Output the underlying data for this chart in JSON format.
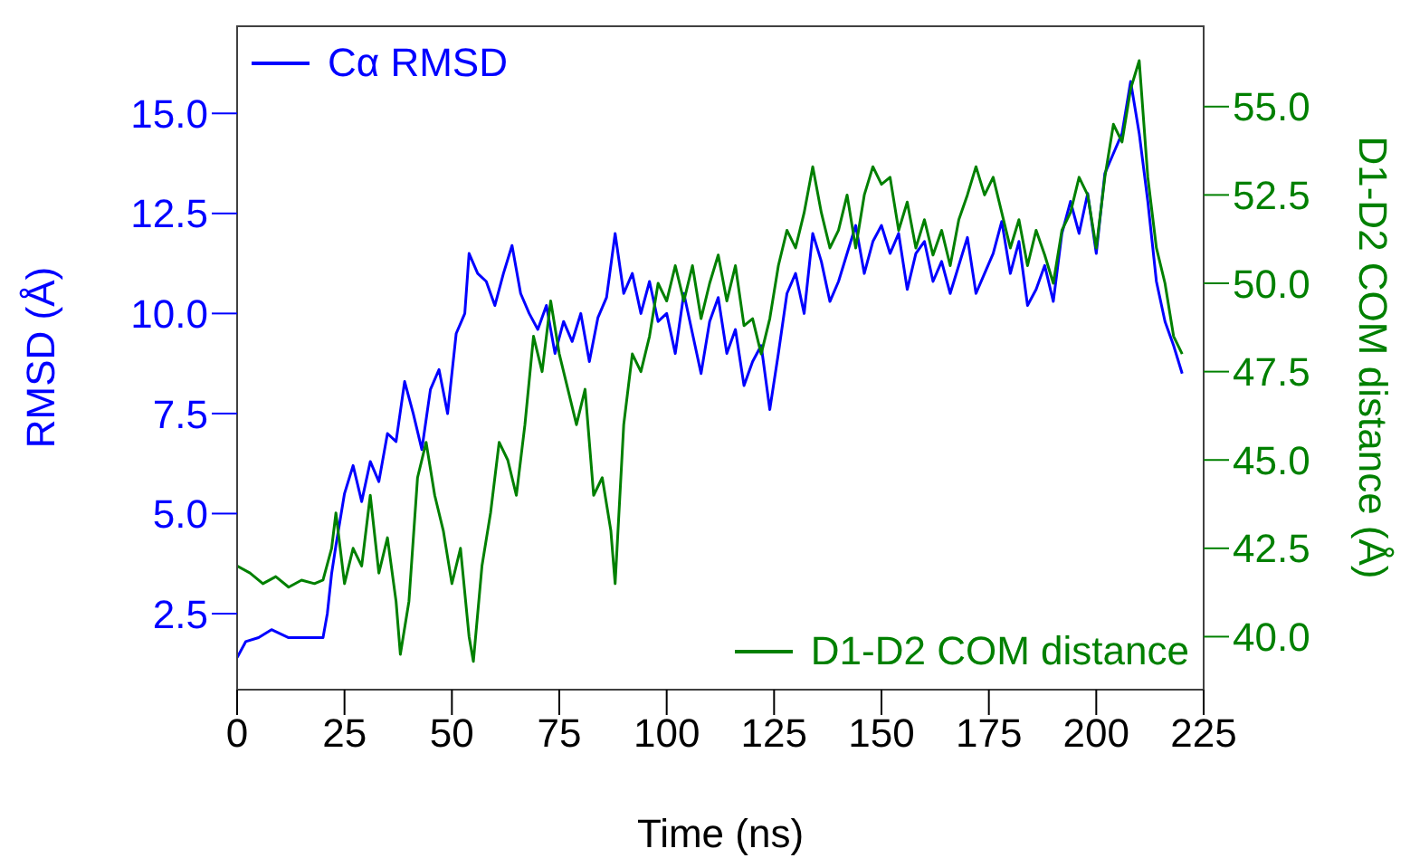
{
  "chart_data": {
    "type": "line",
    "xlabel": "Time (ns)",
    "ylabel": "RMSD (Å)",
    "y2label": "D1-D2 COM distance (Å)",
    "xlim": [
      0,
      225
    ],
    "xticks": [
      0,
      25,
      50,
      75,
      100,
      125,
      150,
      175,
      200,
      225
    ],
    "ylim": [
      0.6,
      17.2
    ],
    "yticks": [
      {
        "value": 2.5,
        "label": "2.5"
      },
      {
        "value": 5,
        "label": "5.0"
      },
      {
        "value": 7.5,
        "label": "7.5"
      },
      {
        "value": 10,
        "label": "10.0"
      },
      {
        "value": 12.5,
        "label": "12.5"
      },
      {
        "value": 15,
        "label": "15.0"
      }
    ],
    "y2lim": [
      38.5,
      57.3
    ],
    "y2ticks": [
      {
        "value": 40,
        "label": "40.0"
      },
      {
        "value": 42.5,
        "label": "42.5"
      },
      {
        "value": 45,
        "label": "45.0"
      },
      {
        "value": 47.5,
        "label": "47.5"
      },
      {
        "value": 50,
        "label": "50.0"
      },
      {
        "value": 52.5,
        "label": "52.5"
      },
      {
        "value": 55,
        "label": "55.0"
      }
    ],
    "grid": false,
    "legend": "top left",
    "marker": "none",
    "line_style": "solid",
    "series": [
      {
        "name": "Cα RMSD",
        "color": "#0000ff",
        "x": [
          0,
          2,
          5,
          8,
          12,
          18,
          20,
          21,
          22,
          23,
          25,
          27,
          29,
          31,
          33,
          35,
          37,
          39,
          41,
          43,
          45,
          47,
          49,
          51,
          53,
          54,
          56,
          58,
          60,
          62,
          64,
          66,
          68,
          70,
          72,
          74,
          76,
          78,
          80,
          82,
          84,
          86,
          88,
          90,
          92,
          94,
          96,
          98,
          100,
          102,
          104,
          106,
          108,
          110,
          112,
          114,
          116,
          118,
          120,
          122,
          124,
          126,
          128,
          130,
          132,
          134,
          136,
          138,
          140,
          142,
          144,
          146,
          148,
          150,
          152,
          154,
          156,
          158,
          160,
          162,
          164,
          166,
          168,
          170,
          172,
          174,
          176,
          178,
          180,
          182,
          184,
          186,
          188,
          190,
          192,
          194,
          196,
          198,
          200,
          202,
          204,
          206,
          208,
          210,
          212,
          214,
          216,
          218,
          220
        ],
        "values": [
          1.4,
          1.8,
          1.9,
          2.1,
          1.9,
          1.9,
          1.9,
          2.5,
          3.5,
          4.2,
          5.5,
          6.2,
          5.3,
          6.3,
          5.8,
          7.0,
          6.8,
          8.3,
          7.5,
          6.6,
          8.1,
          8.6,
          7.5,
          9.5,
          10.0,
          11.5,
          11.0,
          10.8,
          10.2,
          11.0,
          11.7,
          10.5,
          10.0,
          9.6,
          10.2,
          9.0,
          9.8,
          9.3,
          10.0,
          8.8,
          9.9,
          10.4,
          12.0,
          10.5,
          11.0,
          10.0,
          10.8,
          9.8,
          10.0,
          9.0,
          10.5,
          9.5,
          8.5,
          9.8,
          10.4,
          9.0,
          9.6,
          8.2,
          8.8,
          9.2,
          7.6,
          9.0,
          10.5,
          11.0,
          10.0,
          12.0,
          11.3,
          10.3,
          10.8,
          11.5,
          12.2,
          11.0,
          11.8,
          12.2,
          11.5,
          12.0,
          10.6,
          11.5,
          11.8,
          10.8,
          11.3,
          10.5,
          11.2,
          11.9,
          10.5,
          11.0,
          11.5,
          12.3,
          11.0,
          11.8,
          10.2,
          10.6,
          11.2,
          10.3,
          12.0,
          12.8,
          12.0,
          13.0,
          11.5,
          13.5,
          14.0,
          14.5,
          15.8,
          14.5,
          12.8,
          10.8,
          9.8,
          9.2,
          8.5
        ]
      },
      {
        "name": "D1-D2 COM distance",
        "color": "#008000",
        "axis": "y2",
        "x": [
          0,
          3,
          6,
          9,
          12,
          15,
          18,
          20,
          22,
          23,
          25,
          27,
          29,
          31,
          33,
          35,
          37,
          38,
          40,
          42,
          44,
          46,
          48,
          50,
          52,
          54,
          55,
          57,
          59,
          61,
          63,
          65,
          67,
          69,
          71,
          73,
          75,
          77,
          79,
          81,
          83,
          85,
          87,
          88,
          90,
          92,
          94,
          96,
          98,
          100,
          102,
          104,
          106,
          108,
          110,
          112,
          114,
          116,
          118,
          120,
          122,
          124,
          126,
          128,
          130,
          132,
          134,
          136,
          138,
          140,
          142,
          144,
          146,
          148,
          150,
          152,
          154,
          156,
          158,
          160,
          162,
          164,
          166,
          168,
          170,
          172,
          174,
          176,
          178,
          180,
          182,
          184,
          186,
          188,
          190,
          192,
          194,
          196,
          198,
          200,
          202,
          204,
          206,
          208,
          210,
          212,
          214,
          216,
          218,
          220
        ],
        "values": [
          42.0,
          41.8,
          41.5,
          41.7,
          41.4,
          41.6,
          41.5,
          41.6,
          42.5,
          43.5,
          41.5,
          42.5,
          42.0,
          44.0,
          41.8,
          42.8,
          41.0,
          39.5,
          41.0,
          44.5,
          45.5,
          44.0,
          43.0,
          41.5,
          42.5,
          40.0,
          39.3,
          42.0,
          43.5,
          45.5,
          45.0,
          44.0,
          46.0,
          48.5,
          47.5,
          49.5,
          48.0,
          47.0,
          46.0,
          47.0,
          44.0,
          44.5,
          43.0,
          41.5,
          46.0,
          48.0,
          47.5,
          48.5,
          50.0,
          49.5,
          50.5,
          49.5,
          50.5,
          49.0,
          50.0,
          50.8,
          49.5,
          50.5,
          48.8,
          49.0,
          48.0,
          49.0,
          50.5,
          51.5,
          51.0,
          52.0,
          53.3,
          52.0,
          51.0,
          51.5,
          52.5,
          51.0,
          52.5,
          53.3,
          52.8,
          53.0,
          51.5,
          52.3,
          51.0,
          51.8,
          50.8,
          51.5,
          50.5,
          51.8,
          52.5,
          53.3,
          52.5,
          53.0,
          52.0,
          51.0,
          51.8,
          50.5,
          51.5,
          50.8,
          50.0,
          51.5,
          52.0,
          53.0,
          52.5,
          51.0,
          53.0,
          54.5,
          54.0,
          55.5,
          56.3,
          53.0,
          51.0,
          50.0,
          48.5,
          48.0
        ]
      }
    ]
  }
}
